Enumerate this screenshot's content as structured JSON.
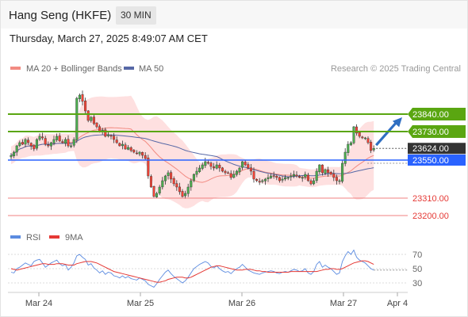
{
  "header": {
    "title": "Hang Seng (HKFE)",
    "timeframe": "30 MIN"
  },
  "datetime": "Thursday, March 27, 2025 8:49:07 AM CET",
  "legend": {
    "ma20_label": "MA 20 + Bollinger Bands",
    "ma50_label": "MA 50"
  },
  "copyright": "Research © 2025 Trading Central",
  "colors": {
    "up": "#4caf50",
    "down": "#f44336",
    "ma50": "#5768a6",
    "ma20": "#f28b82",
    "band": "#fdd6d6",
    "resistance": "#5aa611",
    "pivot": "#2962ff",
    "support": "#f08080",
    "rsi": "#5b8be0",
    "rsi_ma": "#e53935",
    "arrow": "#2f6fc2"
  },
  "chart_data": [
    {
      "type": "candlestick",
      "instrument": "Hang Seng (HKFE)",
      "timeframe": "30 MIN",
      "ylim": [
        23140,
        24060
      ],
      "x_ticks": [
        "Mar 24",
        "Mar 25",
        "Mar 26",
        "Mar 27",
        "Apr 4"
      ],
      "levels": [
        {
          "label": "23840.00",
          "value": 23840,
          "kind": "resistance"
        },
        {
          "label": "23730.00",
          "value": 23730,
          "kind": "resistance"
        },
        {
          "label": "23624.00",
          "value": 23624,
          "kind": "last"
        },
        {
          "label": "23550.00",
          "value": 23550,
          "kind": "pivot"
        },
        {
          "label": "23310.00",
          "value": 23310,
          "kind": "support"
        },
        {
          "label": "23200.00",
          "value": 23200,
          "kind": "support"
        }
      ],
      "series": [
        {
          "name": "MA 20 + Bollinger Bands"
        },
        {
          "name": "MA 50"
        }
      ],
      "closes": [
        23580,
        23600,
        23640,
        23660,
        23650,
        23680,
        23660,
        23640,
        23620,
        23680,
        23700,
        23690,
        23650,
        23640,
        23660,
        23680,
        23700,
        23670,
        23660,
        23680,
        23640,
        23640,
        23680,
        23940,
        23960,
        23920,
        23860,
        23800,
        23820,
        23780,
        23760,
        23730,
        23740,
        23700,
        23710,
        23700,
        23680,
        23660,
        23640,
        23650,
        23620,
        23630,
        23610,
        23600,
        23590,
        23600,
        23580,
        23560,
        23450,
        23380,
        23320,
        23340,
        23380,
        23420,
        23450,
        23470,
        23430,
        23400,
        23380,
        23350,
        23320,
        23340,
        23380,
        23420,
        23460,
        23480,
        23500,
        23520,
        23540,
        23530,
        23510,
        23500,
        23520,
        23500,
        23480,
        23470,
        23470,
        23440,
        23460,
        23480,
        23500,
        23540,
        23520,
        23500,
        23480,
        23430,
        23420,
        23410,
        23420,
        23430,
        23440,
        23450,
        23450,
        23440,
        23420,
        23430,
        23440,
        23440,
        23450,
        23460,
        23450,
        23440,
        23440,
        23460,
        23420,
        23400,
        23420,
        23480,
        23520,
        23470,
        23490,
        23470,
        23460,
        23440,
        23420,
        23420,
        23530,
        23600,
        23650,
        23660,
        23760,
        23720,
        23700,
        23690,
        23690,
        23660,
        23610,
        23624
      ],
      "rsi": {
        "name": "RSI",
        "ma_name": "9MA",
        "ylim": [
          20,
          80
        ],
        "ticks": [
          70,
          50,
          30
        ],
        "values": [
          45,
          44,
          50,
          52,
          55,
          58,
          56,
          54,
          60,
          62,
          63,
          58,
          52,
          55,
          58,
          60,
          62,
          57,
          54,
          56,
          48,
          52,
          58,
          68,
          70,
          66,
          63,
          55,
          57,
          51,
          48,
          44,
          47,
          42,
          45,
          44,
          40,
          39,
          37,
          40,
          37,
          39,
          36,
          35,
          34,
          37,
          35,
          33,
          28,
          26,
          24,
          29,
          35,
          40,
          45,
          48,
          43,
          39,
          36,
          33,
          30,
          33,
          38,
          44,
          50,
          53,
          56,
          58,
          60,
          58,
          53,
          51,
          54,
          50,
          47,
          45,
          46,
          43,
          47,
          50,
          52,
          56,
          52,
          48,
          46,
          44,
          43,
          42,
          44,
          45,
          46,
          47,
          46,
          44,
          43,
          45,
          46,
          45,
          47,
          49,
          48,
          46,
          47,
          50,
          44,
          42,
          46,
          56,
          60,
          52,
          55,
          52,
          50,
          46,
          42,
          44,
          60,
          68,
          74,
          70,
          76,
          66,
          62,
          60,
          58,
          54,
          50,
          48
        ],
        "ma_values": [
          50,
          49,
          48,
          49,
          50,
          51,
          52,
          53,
          54,
          55,
          56,
          57,
          57,
          56,
          56,
          56,
          57,
          57,
          57,
          56,
          55,
          55,
          55,
          57,
          58,
          59,
          60,
          60,
          60,
          59,
          58,
          56,
          54,
          52,
          50,
          48,
          46,
          45,
          44,
          43,
          42,
          41,
          40,
          39,
          38,
          37,
          36,
          35,
          34,
          33,
          32,
          31,
          31,
          32,
          33,
          35,
          36,
          37,
          38,
          38,
          38,
          37,
          37,
          38,
          40,
          42,
          44,
          46,
          48,
          50,
          52,
          53,
          54,
          54,
          53,
          52,
          51,
          50,
          49,
          48,
          48,
          48,
          49,
          49,
          49,
          48,
          47,
          47,
          46,
          46,
          45,
          45,
          45,
          45,
          45,
          45,
          45,
          45,
          46,
          46,
          46,
          46,
          46,
          46,
          46,
          46,
          46,
          46,
          47,
          48,
          49,
          49,
          50,
          50,
          49,
          49,
          50,
          52,
          54,
          56,
          58,
          59,
          60,
          61,
          61,
          60,
          58,
          56
        ]
      }
    }
  ]
}
